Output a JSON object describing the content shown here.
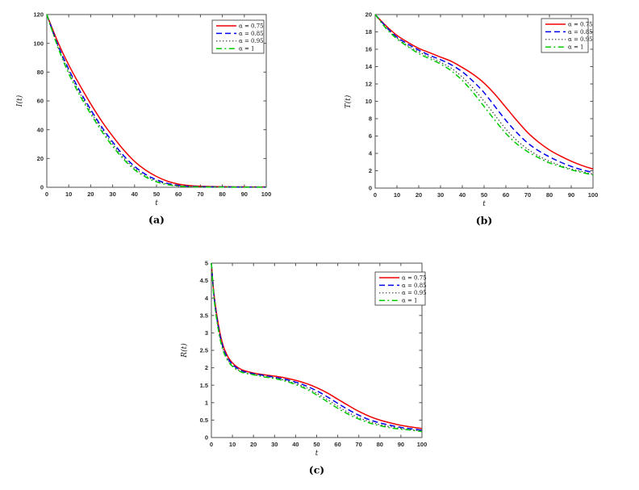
{
  "figure": {
    "background": "#ffffff",
    "axis_color": "#4f4f4f",
    "panel_captions": [
      "(a)",
      "(b)",
      "(c)"
    ]
  },
  "chart_data": [
    {
      "type": "line",
      "caption": "(a)",
      "xlabel": "t",
      "ylabel": "I(t)",
      "xlim": [
        0,
        100
      ],
      "ylim": [
        0,
        120
      ],
      "xtick_labels": [
        "0",
        "10",
        "20",
        "30",
        "40",
        "50",
        "60",
        "70",
        "80",
        "90",
        "100"
      ],
      "ytick_labels": [
        "0",
        "20",
        "40",
        "60",
        "80",
        "100",
        "120"
      ],
      "grid": false,
      "legend_position": "top-right",
      "x": [
        0,
        5,
        10,
        15,
        20,
        25,
        30,
        35,
        40,
        45,
        50,
        55,
        60,
        65,
        70,
        75,
        80,
        85,
        90,
        95,
        100
      ],
      "series": [
        {
          "label": "α = 0.75",
          "color": "#f10000",
          "style": "solid",
          "values": [
            120,
            101,
            85,
            71,
            58,
            46,
            35.5,
            26,
            18,
            12,
            7.5,
            4.2,
            2.2,
            1.2,
            0.7,
            0.5,
            0.35,
            0.3,
            0.25,
            0.2,
            0.2
          ]
        },
        {
          "label": "α = 0.85",
          "color": "#0000ee",
          "style": "dashed",
          "values": [
            120,
            99,
            82,
            67,
            54,
            42,
            31.5,
            22,
            14.5,
            9,
            5.2,
            2.7,
            1.3,
            0.7,
            0.4,
            0.3,
            0.25,
            0.2,
            0.15,
            0.15,
            0.1
          ]
        },
        {
          "label": "α = 0.95",
          "color": "#333333",
          "style": "dotted",
          "values": [
            120,
            98,
            80.5,
            65.5,
            52.5,
            40.5,
            30,
            20.5,
            13.2,
            8,
            4.4,
            2.2,
            1.0,
            0.5,
            0.3,
            0.2,
            0.15,
            0.12,
            0.1,
            0.1,
            0.1
          ]
        },
        {
          "label": "α = 1",
          "color": "#00cc00",
          "style": "dashdot",
          "values": [
            120,
            97.5,
            79,
            64,
            51,
            39,
            28.5,
            19.5,
            12.2,
            7.2,
            3.8,
            1.8,
            0.85,
            0.4,
            0.25,
            0.15,
            0.12,
            0.1,
            0.1,
            0.08,
            0.08
          ]
        }
      ]
    },
    {
      "type": "line",
      "caption": "(b)",
      "xlabel": "t",
      "ylabel": "T(t)",
      "xlim": [
        0,
        100
      ],
      "ylim": [
        0,
        20
      ],
      "xtick_labels": [
        "0",
        "10",
        "20",
        "30",
        "40",
        "50",
        "60",
        "70",
        "80",
        "90",
        "100"
      ],
      "ytick_labels": [
        "0",
        "2",
        "4",
        "6",
        "8",
        "10",
        "12",
        "14",
        "16",
        "18",
        "20"
      ],
      "grid": false,
      "legend_position": "top-right",
      "x": [
        0,
        5,
        10,
        15,
        20,
        25,
        30,
        35,
        40,
        45,
        50,
        55,
        60,
        65,
        70,
        75,
        80,
        85,
        90,
        95,
        100
      ],
      "series": [
        {
          "label": "α = 0.75",
          "color": "#f10000",
          "style": "solid",
          "values": [
            20,
            18.7,
            17.6,
            16.8,
            16.1,
            15.6,
            15.1,
            14.6,
            13.9,
            13.1,
            12.1,
            10.8,
            9.3,
            7.8,
            6.4,
            5.3,
            4.4,
            3.7,
            3.1,
            2.6,
            2.2
          ]
        },
        {
          "label": "α = 0.85",
          "color": "#0000ee",
          "style": "dashed",
          "values": [
            20,
            18.6,
            17.4,
            16.6,
            15.9,
            15.3,
            14.8,
            14.2,
            13.4,
            12.3,
            11.0,
            9.4,
            7.8,
            6.4,
            5.2,
            4.3,
            3.6,
            3.0,
            2.5,
            2.1,
            1.8
          ]
        },
        {
          "label": "α = 0.95",
          "color": "#333333",
          "style": "dotted",
          "values": [
            20,
            18.5,
            17.3,
            16.4,
            15.7,
            15.1,
            14.5,
            13.8,
            12.8,
            11.5,
            10.0,
            8.4,
            6.8,
            5.5,
            4.5,
            3.7,
            3.1,
            2.6,
            2.2,
            1.9,
            1.6
          ]
        },
        {
          "label": "α = 1",
          "color": "#00cc00",
          "style": "dashdot",
          "values": [
            20,
            18.4,
            17.2,
            16.3,
            15.5,
            14.9,
            14.3,
            13.5,
            12.4,
            11.0,
            9.4,
            7.8,
            6.3,
            5.1,
            4.2,
            3.5,
            2.9,
            2.5,
            2.1,
            1.8,
            1.5
          ]
        }
      ]
    },
    {
      "type": "line",
      "caption": "(c)",
      "xlabel": "t",
      "ylabel": "R(t)",
      "xlim": [
        0,
        100
      ],
      "ylim": [
        0,
        5
      ],
      "xtick_labels": [
        "0",
        "10",
        "20",
        "30",
        "40",
        "50",
        "60",
        "70",
        "80",
        "90",
        "100"
      ],
      "ytick_labels": [
        "0",
        "0.5",
        "1",
        "1.5",
        "2",
        "2.5",
        "3",
        "3.5",
        "4",
        "4.5",
        "5"
      ],
      "grid": false,
      "legend_position": "top-right",
      "x": [
        0,
        1,
        2,
        3,
        4,
        5,
        6,
        8,
        10,
        12,
        15,
        20,
        25,
        30,
        35,
        40,
        45,
        50,
        55,
        60,
        65,
        70,
        75,
        80,
        85,
        90,
        95,
        100
      ],
      "series": [
        {
          "label": "α = 0.75",
          "color": "#f10000",
          "style": "solid",
          "values": [
            5,
            4.25,
            3.75,
            3.35,
            3.02,
            2.76,
            2.56,
            2.3,
            2.14,
            2.03,
            1.93,
            1.85,
            1.8,
            1.76,
            1.71,
            1.64,
            1.55,
            1.43,
            1.28,
            1.1,
            0.92,
            0.75,
            0.61,
            0.5,
            0.42,
            0.35,
            0.3,
            0.26
          ]
        },
        {
          "label": "α = 0.85",
          "color": "#0000ee",
          "style": "dashed",
          "values": [
            5,
            4.2,
            3.68,
            3.28,
            2.95,
            2.7,
            2.5,
            2.25,
            2.1,
            2.0,
            1.9,
            1.83,
            1.78,
            1.73,
            1.67,
            1.59,
            1.48,
            1.34,
            1.17,
            0.98,
            0.8,
            0.64,
            0.51,
            0.42,
            0.35,
            0.29,
            0.25,
            0.21
          ]
        },
        {
          "label": "α = 0.95",
          "color": "#333333",
          "style": "dotted",
          "values": [
            5,
            4.17,
            3.64,
            3.23,
            2.9,
            2.65,
            2.46,
            2.21,
            2.07,
            1.97,
            1.88,
            1.81,
            1.76,
            1.71,
            1.64,
            1.55,
            1.43,
            1.27,
            1.09,
            0.9,
            0.72,
            0.57,
            0.46,
            0.37,
            0.31,
            0.26,
            0.22,
            0.19
          ]
        },
        {
          "label": "α = 1",
          "color": "#00cc00",
          "style": "dashdot",
          "values": [
            5,
            4.15,
            3.6,
            3.19,
            2.86,
            2.61,
            2.42,
            2.18,
            2.04,
            1.95,
            1.86,
            1.8,
            1.74,
            1.69,
            1.62,
            1.52,
            1.39,
            1.22,
            1.03,
            0.84,
            0.67,
            0.53,
            0.42,
            0.34,
            0.28,
            0.24,
            0.21,
            0.17
          ]
        }
      ]
    }
  ]
}
